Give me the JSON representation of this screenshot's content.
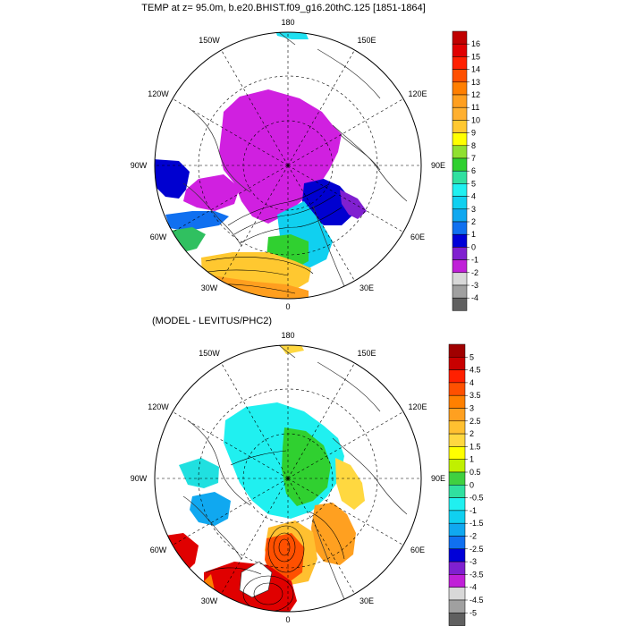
{
  "panels": [
    {
      "title": "TEMP at z=  95.0m, b.e20.BHIST.f09_g16.20thC.125 [1851-1864]",
      "lon_labels": [
        "180",
        "150E",
        "120E",
        "90E",
        "60E",
        "30E",
        "0",
        "30W",
        "60W",
        "90W",
        "120W",
        "150W"
      ],
      "colorbar": {
        "labels": [
          "16",
          "15",
          "14",
          "13",
          "12",
          "11",
          "10",
          "9",
          "8",
          "7",
          "6",
          "5",
          "4",
          "3",
          "2",
          "1",
          "0",
          "-1",
          "-2",
          "-3",
          "-4"
        ],
        "colors": [
          "#c00000",
          "#e00000",
          "#ff2000",
          "#ff5000",
          "#ff7f00",
          "#ff9f1f",
          "#ffb030",
          "#ffc830",
          "#ffff00",
          "#90e030",
          "#30d030",
          "#30e0a0",
          "#20f0f0",
          "#10d0f0",
          "#10a8f0",
          "#1070f0",
          "#0000d8",
          "#8020d0",
          "#c020d8",
          "#d8d8d8",
          "#a0a0a0",
          "#606060"
        ]
      }
    },
    {
      "title": "(MODEL - LEVITUS/PHC2)",
      "lon_labels": [
        "180",
        "150E",
        "120E",
        "90E",
        "60E",
        "30E",
        "0",
        "30W",
        "60W",
        "90W",
        "120W",
        "150W"
      ],
      "colorbar": {
        "labels": [
          "5",
          "4.5",
          "4",
          "3.5",
          "3",
          "2.5",
          "2",
          "1.5",
          "1",
          "0.5",
          "0",
          "-0.5",
          "-1",
          "-1.5",
          "-2",
          "-2.5",
          "-3",
          "-3.5",
          "-4",
          "-4.5",
          "-5"
        ],
        "colors": [
          "#a00000",
          "#c80000",
          "#ff2000",
          "#ff5000",
          "#ff8000",
          "#ffa020",
          "#ffc030",
          "#ffd840",
          "#ffff00",
          "#c0f000",
          "#40d040",
          "#30e0a0",
          "#20f0f0",
          "#10d0f0",
          "#10a8f0",
          "#1070f0",
          "#0000d8",
          "#8020d0",
          "#c020d8",
          "#d8d8d8",
          "#a0a0a0",
          "#606060"
        ]
      }
    }
  ]
}
